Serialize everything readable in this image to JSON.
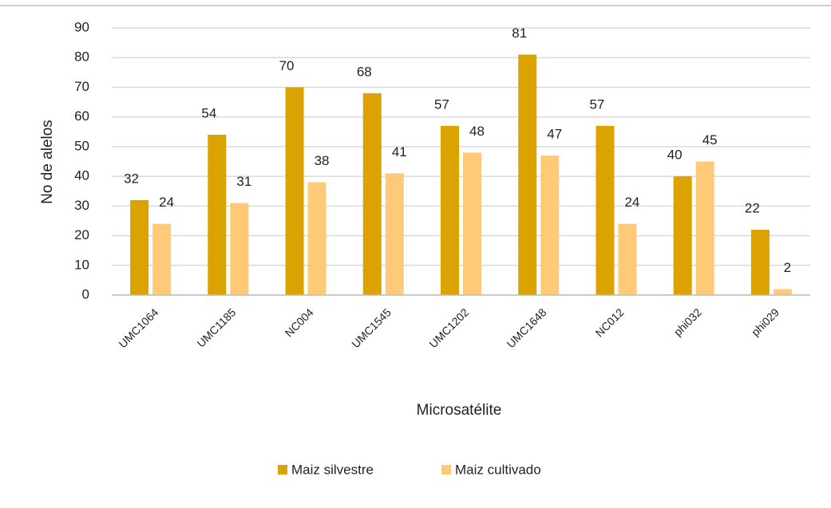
{
  "chart_data": {
    "type": "bar",
    "categories": [
      "UMC1064",
      "UMC1185",
      "NC004",
      "UMC1545",
      "UMC1202",
      "UMC1648",
      "NC012",
      "phi032",
      "phi029"
    ],
    "series": [
      {
        "name": "Maiz silvestre",
        "color": "#dba200",
        "values": [
          32,
          54,
          70,
          68,
          57,
          81,
          57,
          40,
          22
        ]
      },
      {
        "name": "Maiz cultivado",
        "color": "#ffca78",
        "values": [
          24,
          31,
          38,
          41,
          48,
          47,
          24,
          45,
          2
        ]
      }
    ],
    "x_label": "Microsatélite",
    "y_label": "No de alelos",
    "ylim": [
      0,
      90
    ],
    "yticks": [
      0,
      10,
      20,
      30,
      40,
      50,
      60,
      70,
      80,
      90
    ],
    "grid": true,
    "legend": "bottom"
  }
}
